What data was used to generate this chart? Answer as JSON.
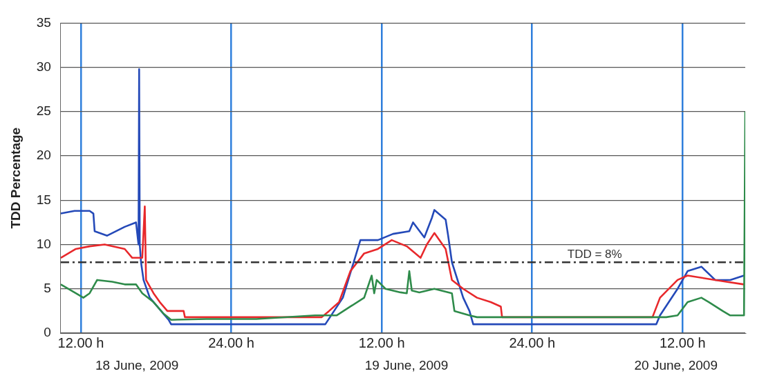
{
  "chart_data": {
    "type": "line",
    "ylabel": "TDD Percentage",
    "xlim": [
      "2009-06-18T10:24",
      "2009-06-20T17:00"
    ],
    "ylim": [
      0,
      35
    ],
    "yticks": [
      0,
      5,
      10,
      15,
      20,
      25,
      30,
      35
    ],
    "xticks": [
      {
        "value": "2009-06-18T12:00",
        "label": "12.00 h"
      },
      {
        "value": "2009-06-19T00:00",
        "label": "24.00 h"
      },
      {
        "value": "2009-06-19T12:00",
        "label": "12.00 h"
      },
      {
        "value": "2009-06-20T00:00",
        "label": "24.00 h"
      },
      {
        "value": "2009-06-20T12:00",
        "label": "12.00 h"
      }
    ],
    "grid": true,
    "legend": false,
    "marker": "none",
    "line_style": "solid",
    "ref_lines": [
      {
        "axis": "y",
        "value": 8,
        "label": "TDD = 8%",
        "color": "#333333",
        "line_style": "dashdot"
      }
    ],
    "annotations": [
      "18 June, 2009",
      "19 June, 2009",
      "20 June, 2009"
    ],
    "series": [
      {
        "color": "#2e8b4a",
        "x": [
          "2009-06-18T10:24",
          "2009-06-18T11:36",
          "2009-06-18T12:12",
          "2009-06-18T12:42",
          "2009-06-18T13:18",
          "2009-06-18T14:30",
          "2009-06-18T15:30",
          "2009-06-18T16:24",
          "2009-06-18T16:54",
          "2009-06-18T17:48",
          "2009-06-18T18:36",
          "2009-06-18T19:12",
          "2009-06-18T22:00",
          "2009-06-19T02:00",
          "2009-06-19T06:42",
          "2009-06-19T08:24",
          "2009-06-19T09:30",
          "2009-06-19T10:36",
          "2009-06-19T11:12",
          "2009-06-19T11:24",
          "2009-06-19T11:36",
          "2009-06-19T12:18",
          "2009-06-19T13:30",
          "2009-06-19T14:00",
          "2009-06-19T14:12",
          "2009-06-19T14:24",
          "2009-06-19T15:00",
          "2009-06-19T16:12",
          "2009-06-19T17:36",
          "2009-06-19T17:48",
          "2009-06-19T19:00",
          "2009-06-19T19:36",
          "2009-06-20T00:00",
          "2009-06-20T06:00",
          "2009-06-20T10:42",
          "2009-06-20T11:36",
          "2009-06-20T12:24",
          "2009-06-20T13:30",
          "2009-06-20T14:06",
          "2009-06-20T15:12",
          "2009-06-20T15:48",
          "2009-06-20T16:54",
          "2009-06-20T17:00"
        ],
        "values": [
          5.5,
          4.5,
          4,
          4.5,
          6,
          5.8,
          5.5,
          5.5,
          4.5,
          3.5,
          2.2,
          1.5,
          1.6,
          1.6,
          2,
          2,
          3,
          4,
          6.5,
          4.5,
          6,
          5,
          4.6,
          4.5,
          7,
          4.8,
          4.6,
          5,
          4.5,
          2.5,
          2,
          1.8,
          1.8,
          1.8,
          1.8,
          2,
          3.5,
          4,
          3.5,
          2.5,
          2,
          2,
          25
        ]
      },
      {
        "color": "#e8282b",
        "x": [
          "2009-06-18T10:24",
          "2009-06-18T11:36",
          "2009-06-18T12:42",
          "2009-06-18T13:54",
          "2009-06-18T15:30",
          "2009-06-18T16:06",
          "2009-06-18T16:54",
          "2009-06-18T17:06",
          "2009-06-18T17:12",
          "2009-06-18T17:48",
          "2009-06-18T18:18",
          "2009-06-18T18:54",
          "2009-06-18T20:12",
          "2009-06-18T20:18",
          "2009-06-19T01:00",
          "2009-06-19T07:12",
          "2009-06-19T07:48",
          "2009-06-19T08:36",
          "2009-06-19T09:30",
          "2009-06-19T10:36",
          "2009-06-19T11:42",
          "2009-06-19T12:48",
          "2009-06-19T14:00",
          "2009-06-19T15:06",
          "2009-06-19T15:36",
          "2009-06-19T16:12",
          "2009-06-19T17:06",
          "2009-06-19T17:36",
          "2009-06-19T18:30",
          "2009-06-19T19:36",
          "2009-06-19T20:42",
          "2009-06-19T21:30",
          "2009-06-19T21:36",
          "2009-06-20T02:00",
          "2009-06-20T09:36",
          "2009-06-20T10:12",
          "2009-06-20T11:36",
          "2009-06-20T12:24",
          "2009-06-20T14:36",
          "2009-06-20T16:54"
        ],
        "values": [
          8.5,
          9.5,
          9.8,
          10,
          9.5,
          8.5,
          8.5,
          14.3,
          6,
          4.5,
          3.5,
          2.5,
          2.5,
          1.8,
          1.8,
          1.8,
          2.5,
          3.5,
          7,
          9,
          9.5,
          10.5,
          9.8,
          8.5,
          10,
          11.3,
          9.5,
          6,
          5,
          4,
          3.5,
          3,
          1.8,
          1.8,
          1.8,
          4,
          6,
          6.5,
          6,
          5.5
        ]
      },
      {
        "color": "#2449b8",
        "x": [
          "2009-06-18T10:24",
          "2009-06-18T11:30",
          "2009-06-18T12:42",
          "2009-06-18T13:00",
          "2009-06-18T13:06",
          "2009-06-18T14:06",
          "2009-06-18T15:30",
          "2009-06-18T16:24",
          "2009-06-18T16:36",
          "2009-06-18T16:39",
          "2009-06-18T16:42",
          "2009-06-18T16:48",
          "2009-06-18T17:00",
          "2009-06-18T17:30",
          "2009-06-18T18:06",
          "2009-06-18T18:24",
          "2009-06-18T19:00",
          "2009-06-18T19:12",
          "2009-06-19T01:00",
          "2009-06-19T07:30",
          "2009-06-19T08:54",
          "2009-06-19T10:18",
          "2009-06-19T11:42",
          "2009-06-19T12:54",
          "2009-06-19T14:12",
          "2009-06-19T14:30",
          "2009-06-19T15:24",
          "2009-06-19T16:00",
          "2009-06-19T16:12",
          "2009-06-19T17:06",
          "2009-06-19T17:18",
          "2009-06-19T17:36",
          "2009-06-19T18:30",
          "2009-06-19T19:00",
          "2009-06-19T19:18",
          "2009-06-20T02:00",
          "2009-06-20T09:54",
          "2009-06-20T10:12",
          "2009-06-20T11:36",
          "2009-06-20T12:24",
          "2009-06-20T13:30",
          "2009-06-20T14:36",
          "2009-06-20T15:48",
          "2009-06-20T16:54"
        ],
        "values": [
          13.5,
          13.8,
          13.8,
          13.5,
          11.5,
          11,
          12,
          12.5,
          10,
          29.8,
          10,
          8,
          6,
          4,
          3,
          2.5,
          1.5,
          1,
          1,
          1,
          4,
          10.5,
          10.5,
          11.2,
          11.5,
          12.5,
          10.8,
          13,
          13.9,
          12.8,
          11,
          8,
          4,
          2.5,
          1,
          1,
          1,
          2,
          5,
          7,
          7.5,
          6,
          6,
          6.5
        ]
      }
    ]
  }
}
